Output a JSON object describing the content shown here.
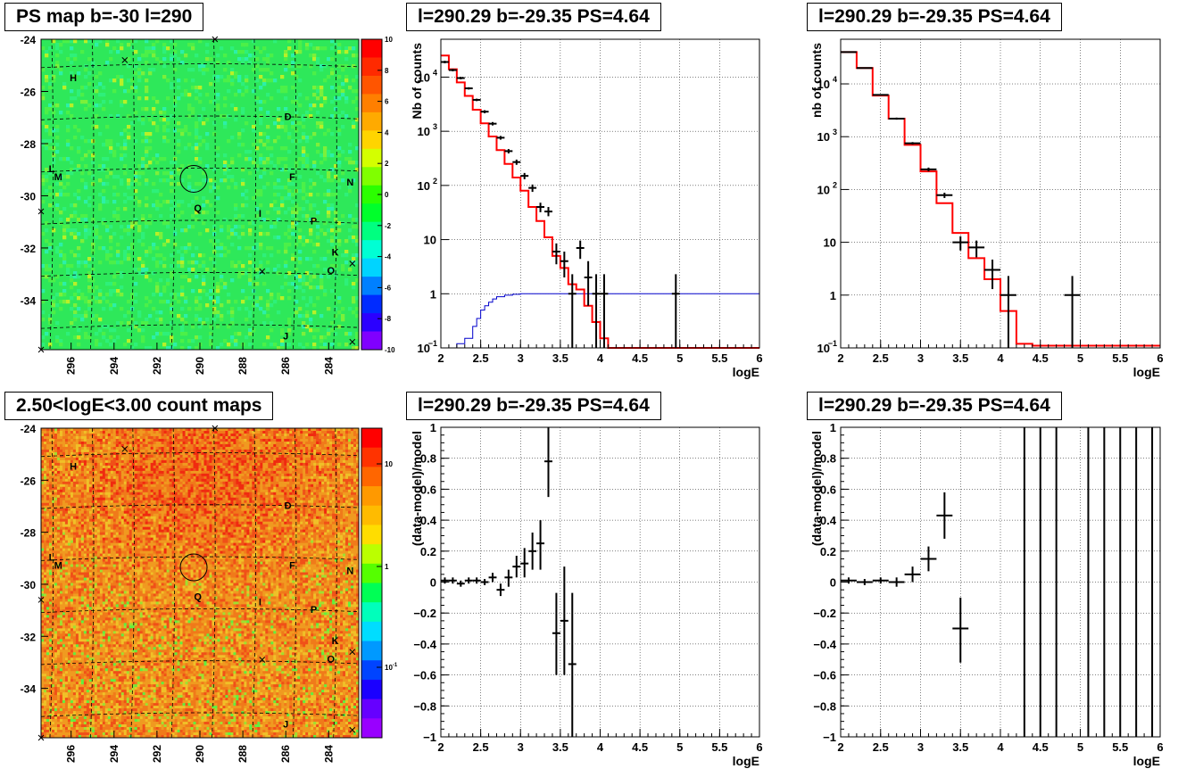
{
  "panels": {
    "map1": {
      "title": "PS map b=-30 l=290"
    },
    "map2": {
      "title": "2.50<logE<3.00 count maps"
    },
    "spec1": {
      "title": "l=290.29 b=-29.35 PS=4.64"
    },
    "spec2": {
      "title": "l=290.29 b=-29.35 PS=4.64"
    },
    "res1": {
      "title": "l=290.29 b=-29.35 PS=4.64"
    },
    "res2": {
      "title": "l=290.29 b=-29.35 PS=4.64"
    }
  },
  "colors": {
    "data": "#000000",
    "model": "#ff0000",
    "exposure": "#0000cc",
    "grid": "#000000",
    "map_bg": "#2ee85a"
  },
  "chart_data": [
    {
      "id": "map1",
      "type": "heatmap",
      "title": "PS map b=-30 l=290",
      "x_ticks": [
        "296",
        "294",
        "292",
        "290",
        "288",
        "286",
        "284"
      ],
      "y_ticks": [
        "-24",
        "-26",
        "-28",
        "-30",
        "-32",
        "-34"
      ],
      "colorbar_ticks": [
        "10",
        "8",
        "6",
        "4",
        "2",
        "0",
        "-2",
        "-4",
        "-6",
        "-8",
        "-10"
      ],
      "zlim": [
        -10,
        10
      ],
      "labels": [
        {
          "text": "H",
          "l": 295.9,
          "b": -25.6
        },
        {
          "text": "D",
          "l": 285.9,
          "b": -27.1
        },
        {
          "text": "L",
          "l": 296.9,
          "b": -29.1
        },
        {
          "text": "M",
          "l": 296.6,
          "b": -29.4
        },
        {
          "text": "F",
          "l": 285.7,
          "b": -29.4
        },
        {
          "text": "N",
          "l": 283.0,
          "b": -29.6
        },
        {
          "text": "Q",
          "l": 290.1,
          "b": -30.6
        },
        {
          "text": "I",
          "l": 287.2,
          "b": -30.8
        },
        {
          "text": "P",
          "l": 284.7,
          "b": -31.1
        },
        {
          "text": "K",
          "l": 283.7,
          "b": -32.3
        },
        {
          "text": "O",
          "l": 283.9,
          "b": -33.0
        },
        {
          "text": "J",
          "l": 286.0,
          "b": -35.5
        }
      ],
      "crosses": [
        {
          "l": 293.5,
          "b": -24.8
        },
        {
          "l": 289.3,
          "b": -24.0
        },
        {
          "l": 297.4,
          "b": -30.6
        },
        {
          "l": 287.1,
          "b": -32.9
        },
        {
          "l": 282.9,
          "b": -32.6
        },
        {
          "l": 297.4,
          "b": -35.9
        },
        {
          "l": 282.9,
          "b": -35.6
        }
      ],
      "circle": {
        "l": 290.29,
        "b": -29.35
      }
    },
    {
      "id": "map2",
      "type": "heatmap",
      "title": "2.50<logE<3.00 count maps",
      "x_ticks": [
        "296",
        "294",
        "292",
        "290",
        "288",
        "286",
        "284"
      ],
      "y_ticks": [
        "-24",
        "-26",
        "-28",
        "-30",
        "-32",
        "-34"
      ],
      "colorbar_ticks": [
        "10",
        "1",
        "10^-1"
      ],
      "log_scale": true
    },
    {
      "id": "spec1",
      "type": "line",
      "title": "l=290.29 b=-29.35 PS=4.64",
      "xlabel": "logE",
      "ylabel": "Nb of counts",
      "xlim": [
        2,
        6
      ],
      "ylim": [
        0.1,
        50000
      ],
      "log_y": true,
      "x_ticks": [
        "2",
        "2.5",
        "3",
        "3.5",
        "4",
        "4.5",
        "5",
        "5.5",
        "6"
      ],
      "model_edges": [
        2.0,
        2.1,
        2.2,
        2.3,
        2.4,
        2.5,
        2.6,
        2.7,
        2.8,
        2.9,
        3.0,
        3.1,
        3.2,
        3.3,
        3.4,
        3.5,
        3.6,
        3.7,
        3.8,
        3.9,
        4.0,
        4.1,
        4.2,
        6.0
      ],
      "model_values": [
        25000,
        14000,
        8000,
        4500,
        2500,
        1400,
        800,
        450,
        250,
        140,
        80,
        40,
        22,
        11,
        5,
        3,
        1.5,
        1.2,
        0.6,
        0.3,
        0.15,
        0.1,
        0.1
      ],
      "exposure_edges": [
        2.0,
        2.1,
        2.2,
        2.3,
        2.4,
        2.45,
        2.5,
        2.55,
        2.6,
        2.65,
        2.7,
        2.8,
        2.9,
        3.0,
        3.2,
        6.0
      ],
      "exposure_values": [
        0.08,
        0.1,
        0.12,
        0.15,
        0.25,
        0.35,
        0.5,
        0.6,
        0.7,
        0.8,
        0.88,
        0.94,
        0.98,
        1.0,
        1.0
      ],
      "points": [
        {
          "x": 2.05,
          "y": 19000,
          "xerr": 0.05,
          "lo": 18000,
          "hi": 20000
        },
        {
          "x": 2.15,
          "y": 13500,
          "xerr": 0.05,
          "lo": 12800,
          "hi": 14200
        },
        {
          "x": 2.25,
          "y": 9600,
          "xerr": 0.05,
          "lo": 9100,
          "hi": 10100
        },
        {
          "x": 2.35,
          "y": 6200,
          "xerr": 0.05,
          "lo": 5900,
          "hi": 6500
        },
        {
          "x": 2.45,
          "y": 3800,
          "xerr": 0.05,
          "lo": 3600,
          "hi": 4000
        },
        {
          "x": 2.55,
          "y": 2300,
          "xerr": 0.05,
          "lo": 2150,
          "hi": 2450
        },
        {
          "x": 2.65,
          "y": 1380,
          "xerr": 0.05,
          "lo": 1280,
          "hi": 1480
        },
        {
          "x": 2.75,
          "y": 760,
          "xerr": 0.05,
          "lo": 700,
          "hi": 820
        },
        {
          "x": 2.85,
          "y": 430,
          "xerr": 0.05,
          "lo": 390,
          "hi": 470
        },
        {
          "x": 2.95,
          "y": 270,
          "xerr": 0.05,
          "lo": 240,
          "hi": 300
        },
        {
          "x": 3.05,
          "y": 150,
          "xerr": 0.05,
          "lo": 130,
          "hi": 170
        },
        {
          "x": 3.15,
          "y": 90,
          "xerr": 0.05,
          "lo": 76,
          "hi": 104
        },
        {
          "x": 3.25,
          "y": 40,
          "xerr": 0.05,
          "lo": 32,
          "hi": 48
        },
        {
          "x": 3.35,
          "y": 33,
          "xerr": 0.05,
          "lo": 27,
          "hi": 40
        },
        {
          "x": 3.45,
          "y": 6,
          "xerr": 0.05,
          "lo": 3.5,
          "hi": 8.5
        },
        {
          "x": 3.55,
          "y": 4,
          "xerr": 0.05,
          "lo": 2,
          "hi": 6
        },
        {
          "x": 3.65,
          "y": 1,
          "xerr": 0.05,
          "lo": 0.1,
          "hi": 2.3
        },
        {
          "x": 3.75,
          "y": 7,
          "xerr": 0.05,
          "lo": 4.4,
          "hi": 9.6
        },
        {
          "x": 3.85,
          "y": 2,
          "xerr": 0.05,
          "lo": 0.6,
          "hi": 4
        },
        {
          "x": 3.95,
          "y": 1,
          "xerr": 0.05,
          "lo": 0.1,
          "hi": 2.3
        },
        {
          "x": 4.05,
          "y": 1,
          "xerr": 0.05,
          "lo": 0.1,
          "hi": 2.3
        },
        {
          "x": 4.95,
          "y": 1,
          "xerr": 0.05,
          "lo": 0.1,
          "hi": 2.3
        }
      ]
    },
    {
      "id": "spec2",
      "type": "line",
      "title": "l=290.29 b=-29.35 PS=4.64",
      "xlabel": "logE",
      "ylabel": "nb of counts",
      "xlim": [
        2,
        6
      ],
      "ylim": [
        0.1,
        70000
      ],
      "log_y": true,
      "x_ticks": [
        "2",
        "2.5",
        "3",
        "3.5",
        "4",
        "4.5",
        "5",
        "5.5",
        "6"
      ],
      "model_edges": [
        2.0,
        2.2,
        2.4,
        2.6,
        2.8,
        3.0,
        3.2,
        3.4,
        3.6,
        3.8,
        4.0,
        4.2,
        4.4,
        6.0
      ],
      "model_values": [
        40000,
        20000,
        6000,
        2200,
        700,
        220,
        55,
        15,
        5,
        2,
        0.5,
        0.12,
        0.11
      ],
      "points": [
        {
          "x": 2.1,
          "y": 40000,
          "xerr": 0.1,
          "lo": 39000,
          "hi": 41000
        },
        {
          "x": 2.3,
          "y": 20000,
          "xerr": 0.1,
          "lo": 19500,
          "hi": 20500
        },
        {
          "x": 2.5,
          "y": 6200,
          "xerr": 0.1,
          "lo": 6000,
          "hi": 6400
        },
        {
          "x": 2.7,
          "y": 2200,
          "xerr": 0.1,
          "lo": 2100,
          "hi": 2300
        },
        {
          "x": 2.9,
          "y": 750,
          "xerr": 0.1,
          "lo": 710,
          "hi": 790
        },
        {
          "x": 3.1,
          "y": 240,
          "xerr": 0.1,
          "lo": 220,
          "hi": 260
        },
        {
          "x": 3.3,
          "y": 78,
          "xerr": 0.1,
          "lo": 69,
          "hi": 87
        },
        {
          "x": 3.5,
          "y": 10,
          "xerr": 0.1,
          "lo": 7,
          "hi": 13
        },
        {
          "x": 3.7,
          "y": 8,
          "xerr": 0.1,
          "lo": 5.2,
          "hi": 10.8
        },
        {
          "x": 3.9,
          "y": 3,
          "xerr": 0.1,
          "lo": 1.3,
          "hi": 4.7
        },
        {
          "x": 4.1,
          "y": 1,
          "xerr": 0.1,
          "lo": 0.1,
          "hi": 2.3
        },
        {
          "x": 4.9,
          "y": 1,
          "xerr": 0.1,
          "lo": 0.1,
          "hi": 2.3
        }
      ]
    },
    {
      "id": "res1",
      "type": "scatter",
      "title": "l=290.29 b=-29.35 PS=4.64",
      "xlabel": "logE",
      "ylabel": "(data-model)/model",
      "xlim": [
        2,
        6
      ],
      "ylim": [
        -1,
        1
      ],
      "x_ticks": [
        "2",
        "2.5",
        "3",
        "3.5",
        "4",
        "4.5",
        "5",
        "5.5",
        "6"
      ],
      "y_ticks": [
        "1",
        "0.8",
        "0.6",
        "0.4",
        "0.2",
        "0",
        "-0.2",
        "-0.4",
        "-0.6",
        "-0.8",
        "-1"
      ],
      "points": [
        {
          "x": 2.05,
          "y": 0.01,
          "xerr": 0.05,
          "lo": -0.01,
          "hi": 0.03
        },
        {
          "x": 2.15,
          "y": 0.01,
          "xerr": 0.05,
          "lo": -0.01,
          "hi": 0.03
        },
        {
          "x": 2.25,
          "y": -0.01,
          "xerr": 0.05,
          "lo": -0.03,
          "hi": 0.01
        },
        {
          "x": 2.35,
          "y": 0.01,
          "xerr": 0.05,
          "lo": -0.01,
          "hi": 0.03
        },
        {
          "x": 2.45,
          "y": 0.01,
          "xerr": 0.05,
          "lo": -0.01,
          "hi": 0.03
        },
        {
          "x": 2.55,
          "y": 0.0,
          "xerr": 0.05,
          "lo": -0.02,
          "hi": 0.02
        },
        {
          "x": 2.65,
          "y": 0.03,
          "xerr": 0.05,
          "lo": 0.0,
          "hi": 0.06
        },
        {
          "x": 2.75,
          "y": -0.05,
          "xerr": 0.05,
          "lo": -0.09,
          "hi": -0.01
        },
        {
          "x": 2.85,
          "y": 0.03,
          "xerr": 0.05,
          "lo": -0.03,
          "hi": 0.08
        },
        {
          "x": 2.95,
          "y": 0.1,
          "xerr": 0.05,
          "lo": 0.03,
          "hi": 0.17
        },
        {
          "x": 3.05,
          "y": 0.12,
          "xerr": 0.05,
          "lo": 0.03,
          "hi": 0.22
        },
        {
          "x": 3.15,
          "y": 0.2,
          "xerr": 0.05,
          "lo": 0.08,
          "hi": 0.32
        },
        {
          "x": 3.25,
          "y": 0.25,
          "xerr": 0.05,
          "lo": 0.08,
          "hi": 0.4
        },
        {
          "x": 3.35,
          "y": 0.78,
          "xerr": 0.05,
          "lo": 0.55,
          "hi": 1.0
        },
        {
          "x": 3.45,
          "y": -0.33,
          "xerr": 0.05,
          "lo": -0.6,
          "hi": -0.07
        },
        {
          "x": 3.55,
          "y": -0.25,
          "xerr": 0.05,
          "lo": -0.6,
          "hi": 0.1
        },
        {
          "x": 3.65,
          "y": -0.53,
          "xerr": 0.05,
          "lo": -1.0,
          "hi": -0.07
        }
      ]
    },
    {
      "id": "res2",
      "type": "scatter",
      "title": "l=290.29 b=-29.35 PS=4.64",
      "xlabel": "logE",
      "ylabel": "(data-model)/model",
      "xlim": [
        2,
        6
      ],
      "ylim": [
        -1,
        1
      ],
      "x_ticks": [
        "2",
        "2.5",
        "3",
        "3.5",
        "4",
        "4.5",
        "5",
        "5.5",
        "6"
      ],
      "y_ticks": [
        "1",
        "0.8",
        "0.6",
        "0.4",
        "0.2",
        "0",
        "-0.2",
        "-0.4",
        "-0.6",
        "-0.8",
        "-1"
      ],
      "points": [
        {
          "x": 2.1,
          "y": 0.01,
          "xerr": 0.1,
          "lo": -0.01,
          "hi": 0.03
        },
        {
          "x": 2.3,
          "y": 0.0,
          "xerr": 0.1,
          "lo": -0.02,
          "hi": 0.02
        },
        {
          "x": 2.5,
          "y": 0.01,
          "xerr": 0.1,
          "lo": -0.01,
          "hi": 0.03
        },
        {
          "x": 2.7,
          "y": 0.0,
          "xerr": 0.1,
          "lo": -0.03,
          "hi": 0.03
        },
        {
          "x": 2.9,
          "y": 0.05,
          "xerr": 0.1,
          "lo": 0.0,
          "hi": 0.1
        },
        {
          "x": 3.1,
          "y": 0.15,
          "xerr": 0.1,
          "lo": 0.07,
          "hi": 0.23
        },
        {
          "x": 3.3,
          "y": 0.43,
          "xerr": 0.1,
          "lo": 0.28,
          "hi": 0.58
        },
        {
          "x": 3.5,
          "y": -0.3,
          "xerr": 0.1,
          "lo": -0.52,
          "hi": -0.1
        }
      ],
      "full_bars_x": [
        4.3,
        4.5,
        4.7,
        5.1,
        5.3,
        5.5,
        5.7,
        5.9
      ]
    }
  ]
}
